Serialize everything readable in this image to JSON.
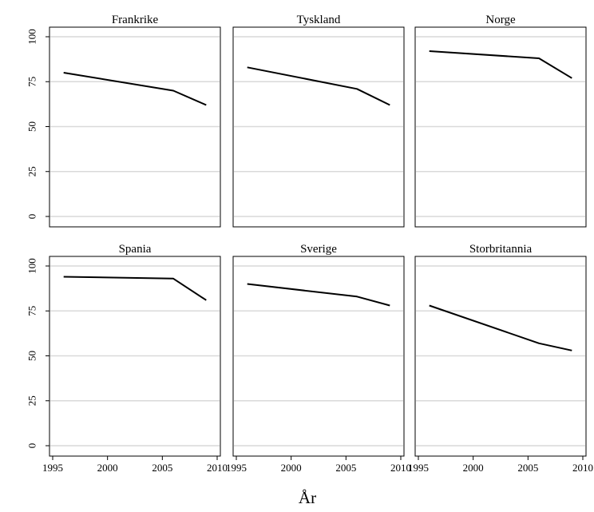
{
  "chart_data": {
    "type": "line",
    "xlabel": "År",
    "ylabel": "",
    "xlim": [
      1995,
      2010
    ],
    "ylim": [
      0,
      100
    ],
    "xticks": [
      1995,
      2000,
      2005,
      2010
    ],
    "yticks": [
      0,
      25,
      50,
      75,
      100
    ],
    "grid": true,
    "layout": "2x3",
    "panels": [
      {
        "title": "Frankrike",
        "x": [
          1996,
          2006,
          2009
        ],
        "y": [
          80,
          70,
          62
        ]
      },
      {
        "title": "Tyskland",
        "x": [
          1996,
          2006,
          2009
        ],
        "y": [
          83,
          71,
          62
        ]
      },
      {
        "title": "Norge",
        "x": [
          1996,
          2006,
          2009
        ],
        "y": [
          92,
          88,
          77
        ]
      },
      {
        "title": "Spania",
        "x": [
          1996,
          2006,
          2009
        ],
        "y": [
          94,
          93,
          81
        ]
      },
      {
        "title": "Sverige",
        "x": [
          1996,
          2006,
          2009
        ],
        "y": [
          90,
          83,
          78
        ]
      },
      {
        "title": "Storbritannia",
        "x": [
          1996,
          2006,
          2009
        ],
        "y": [
          78,
          57,
          53
        ]
      }
    ]
  }
}
